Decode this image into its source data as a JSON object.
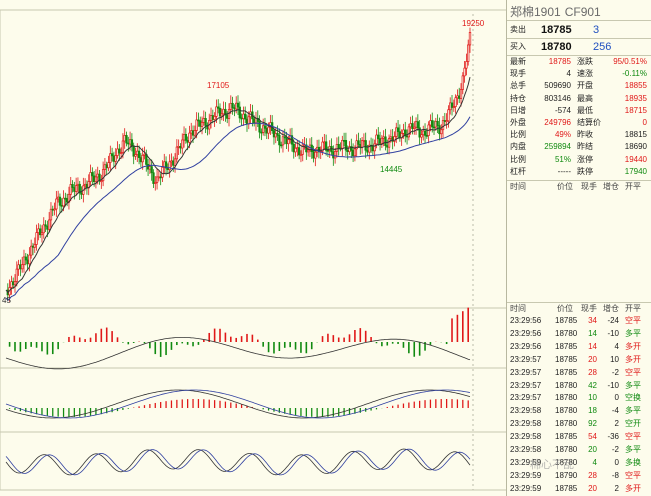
{
  "instrument": {
    "name": "郑棉1901",
    "code": "CF901"
  },
  "book": {
    "ask_label": "卖出",
    "ask_price": "18785",
    "ask_volume": "3",
    "bid_label": "买入",
    "bid_price": "18780",
    "bid_volume": "256"
  },
  "quote_rows": [
    {
      "l1": "最新",
      "v1": "18785",
      "c1": "red",
      "l2": "涨跌",
      "v2": "95/0.51%",
      "c2": "red"
    },
    {
      "l1": "现手",
      "v1": "4",
      "c1": "blk",
      "l2": "速涨",
      "v2": "-0.11%",
      "c2": "green"
    },
    {
      "l1": "总手",
      "v1": "509690",
      "c1": "blk",
      "l2": "开盘",
      "v2": "18855",
      "c2": "red"
    },
    {
      "l1": "持仓",
      "v1": "803146",
      "c1": "blk",
      "l2": "最高",
      "v2": "18935",
      "c2": "red"
    },
    {
      "l1": "日增",
      "v1": "-574",
      "c1": "blk",
      "l2": "最低",
      "v2": "18715",
      "c2": "red"
    },
    {
      "l1": "外盘",
      "v1": "249796",
      "c1": "red",
      "l2": "结算价",
      "v2": "0",
      "c2": "red"
    },
    {
      "l1": "比例",
      "v1": "49%",
      "c1": "red",
      "l2": "昨收",
      "v2": "18815",
      "c2": "blk"
    },
    {
      "l1": "内盘",
      "v1": "259894",
      "c1": "green",
      "l2": "昨结",
      "v2": "18690",
      "c2": "blk"
    },
    {
      "l1": "比例",
      "v1": "51%",
      "c1": "green",
      "l2": "涨停",
      "v2": "19440",
      "c2": "red"
    },
    {
      "l1": "杠杆",
      "v1": "-----",
      "c1": "blk",
      "l2": "跌停",
      "v2": "17940",
      "c2": "green"
    }
  ],
  "ticks_headers": [
    "时间",
    "价位",
    "现手",
    "增仓",
    "开平"
  ],
  "ticks_top": [],
  "ticks": [
    {
      "time": "23:29:56",
      "price": "18785",
      "vol": "34",
      "chg": "-24",
      "type": "空平",
      "color": "red"
    },
    {
      "time": "23:29:56",
      "price": "18780",
      "vol": "14",
      "chg": "-10",
      "type": "多平",
      "color": "green"
    },
    {
      "time": "23:29:56",
      "price": "18785",
      "vol": "14",
      "chg": "4",
      "type": "多开",
      "color": "red"
    },
    {
      "time": "23:29:57",
      "price": "18785",
      "vol": "20",
      "chg": "10",
      "type": "多开",
      "color": "red"
    },
    {
      "time": "23:29:57",
      "price": "18785",
      "vol": "28",
      "chg": "-2",
      "type": "空平",
      "color": "red"
    },
    {
      "time": "23:29:57",
      "price": "18780",
      "vol": "42",
      "chg": "-10",
      "type": "多平",
      "color": "green"
    },
    {
      "time": "23:29:57",
      "price": "18780",
      "vol": "10",
      "chg": "0",
      "type": "空换",
      "color": "green"
    },
    {
      "time": "23:29:58",
      "price": "18780",
      "vol": "18",
      "chg": "-4",
      "type": "多平",
      "color": "green"
    },
    {
      "time": "23:29:58",
      "price": "18780",
      "vol": "92",
      "chg": "2",
      "type": "空开",
      "color": "green"
    },
    {
      "time": "23:29:58",
      "price": "18785",
      "vol": "54",
      "chg": "-36",
      "type": "空平",
      "color": "red"
    },
    {
      "time": "23:29:58",
      "price": "18780",
      "vol": "20",
      "chg": "-2",
      "type": "多平",
      "color": "green"
    },
    {
      "time": "23:29:59",
      "price": "18780",
      "vol": "4",
      "chg": "0",
      "type": "多换",
      "color": "green"
    },
    {
      "time": "23:29:59",
      "price": "18790",
      "vol": "28",
      "chg": "-8",
      "type": "空平",
      "color": "red"
    },
    {
      "time": "23:29:59",
      "price": "18785",
      "vol": "20",
      "chg": "2",
      "type": "多开",
      "color": "red"
    }
  ],
  "chart_labels": {
    "high": "19250",
    "peak_mid": "17105",
    "trough": "14445",
    "left_cut": "45"
  },
  "watermark": "棉心不乱",
  "colors": {
    "up": "#e01818",
    "down": "#108a10",
    "ma1": "#333333",
    "ma2": "#3040a0",
    "bg": "#fdfcec"
  }
}
